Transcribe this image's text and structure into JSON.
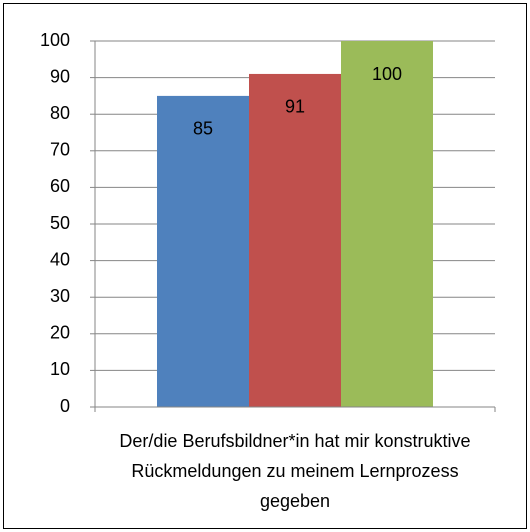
{
  "chart_data": {
    "type": "bar",
    "categories": [
      "Der/die Berufsbildner*in hat mir konstruktive Rückmeldungen zu meinem Lernprozess gegeben"
    ],
    "series": [
      {
        "color": "#4f81bd",
        "values": [
          85
        ]
      },
      {
        "color": "#c0504d",
        "values": [
          91
        ]
      },
      {
        "color": "#9bbb59",
        "values": [
          100
        ]
      }
    ],
    "ylim": [
      0,
      100
    ],
    "yticks": [
      0,
      10,
      20,
      30,
      40,
      50,
      60,
      70,
      80,
      90,
      100
    ],
    "grid": true
  }
}
